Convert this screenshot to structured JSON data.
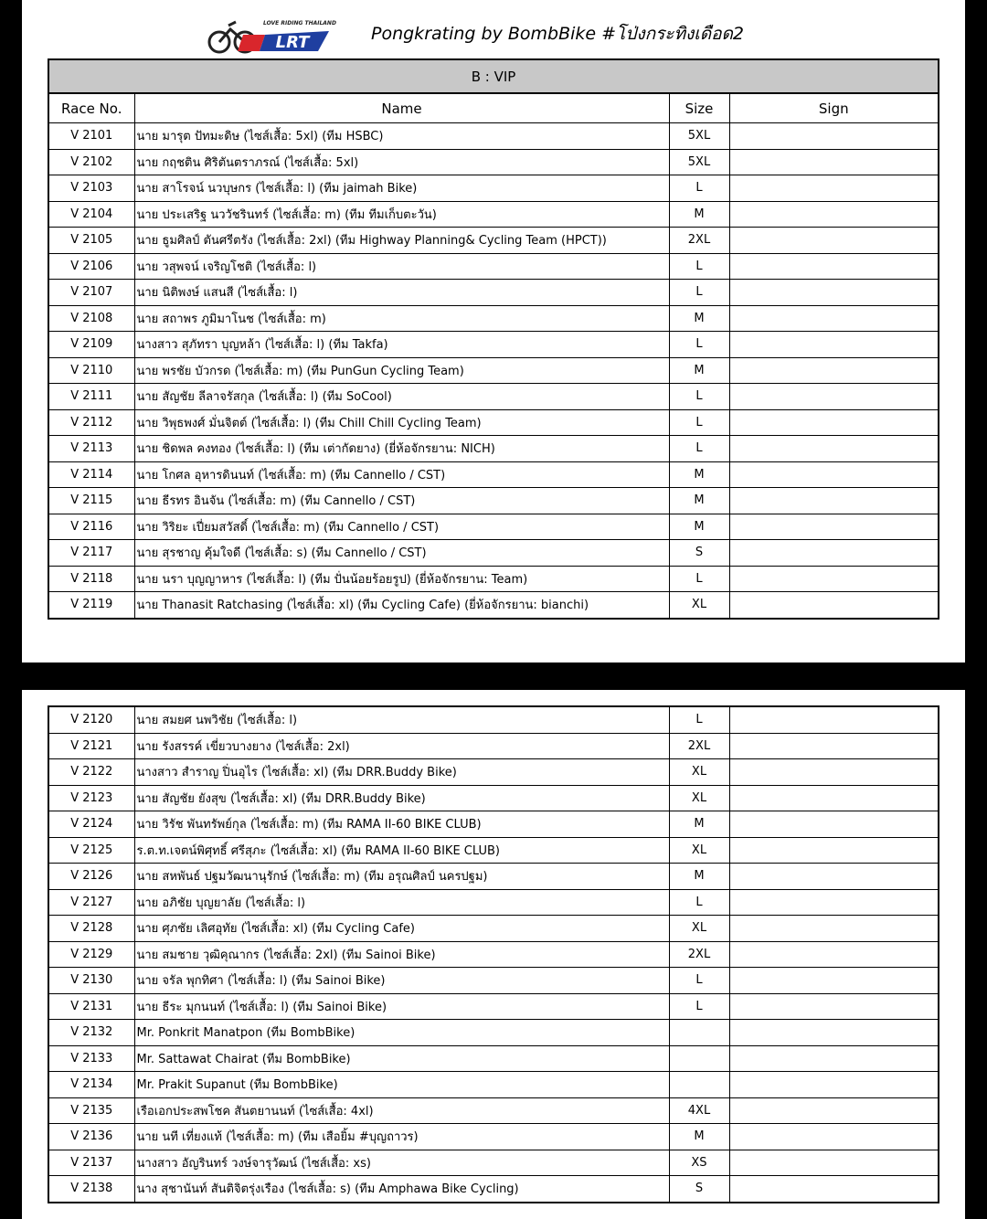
{
  "header": {
    "logo": {
      "tagline": "LOVE RIDING THAILAND",
      "mark": "LRT"
    },
    "title": "Pongkrating by BombBike #โป่งกระทิงเดือด2"
  },
  "table": {
    "section": "B : VIP",
    "columns": [
      "Race No.",
      "Name",
      "Size",
      "Sign"
    ]
  },
  "pages": [
    {
      "rows": [
        {
          "race": "V 2101",
          "name": "นาย มารุต ปัทมะดิษ (ไซส์เสื้อ: 5xl) (ทีม HSBC)",
          "size": "5XL"
        },
        {
          "race": "V 2102",
          "name": "นาย กฤชติน ศิริตันตราภรณ์ (ไซส์เสื้อ: 5xl)",
          "size": "5XL"
        },
        {
          "race": "V 2103",
          "name": "นาย สาโรจน์ นวบุษกร (ไซส์เสื้อ: l) (ทีม jaimah Bike)",
          "size": "L"
        },
        {
          "race": "V 2104",
          "name": "นาย ประเสริฐ นววัชรินทร์ (ไซส์เสื้อ: m) (ทีม ทีมเก็บตะวัน)",
          "size": "M"
        },
        {
          "race": "V 2105",
          "name": "นาย ธูมศิลป์ ตันศรีตรัง (ไซส์เสื้อ: 2xl) (ทีม Highway Planning& Cycling Team (HPCT))",
          "size": "2XL"
        },
        {
          "race": "V 2106",
          "name": "นาย วสุพจน์ เจริญโชติ (ไซส์เสื้อ: l)",
          "size": "L"
        },
        {
          "race": "V 2107",
          "name": "นาย นิติพงษ์ แสนสี (ไซส์เสื้อ: l)",
          "size": "L"
        },
        {
          "race": "V 2108",
          "name": "นาย สถาพร ภูมิมาโนช (ไซส์เสื้อ: m)",
          "size": "M"
        },
        {
          "race": "V 2109",
          "name": "นางสาว สุภัทรา บุญหล้า (ไซส์เสื้อ: l) (ทีม Takfa)",
          "size": "L"
        },
        {
          "race": "V 2110",
          "name": "นาย พรชัย บัวกรด (ไซส์เสื้อ: m) (ทีม PunGun Cycling Team)",
          "size": "M"
        },
        {
          "race": "V 2111",
          "name": "นาย สัญชัย ลีลาจรัสกุล (ไซส์เสื้อ: l) (ทีม SoCool)",
          "size": "L"
        },
        {
          "race": "V 2112",
          "name": "นาย วิพุธพงศ์ มั่นจิตต์ (ไซส์เสื้อ: l) (ทีม Chill Chill Cycling Team)",
          "size": "L"
        },
        {
          "race": "V 2113",
          "name": "นาย ชิดพล คงทอง (ไซส์เสื้อ: l) (ทีม เต่ากัดยาง) (ยี่ห้อจักรยาน: NICH)",
          "size": "L"
        },
        {
          "race": "V 2114",
          "name": "นาย โกศล อุหารดินนท์ (ไซส์เสื้อ: m) (ทีม Cannello / CST)",
          "size": "M"
        },
        {
          "race": "V 2115",
          "name": "นาย ธีรทร อินจัน (ไซส์เสื้อ: m) (ทีม Cannello / CST)",
          "size": "M"
        },
        {
          "race": "V 2116",
          "name": "นาย วิริยะ เปี่ยมสวัสดิ์ (ไซส์เสื้อ: m) (ทีม Cannello / CST)",
          "size": "M"
        },
        {
          "race": "V 2117",
          "name": "นาย สุรชาญ คุ้มใจดี (ไซส์เสื้อ: s) (ทีม Cannello / CST)",
          "size": "S"
        },
        {
          "race": "V 2118",
          "name": "นาย นรา บุญญาหาร (ไซส์เสื้อ: l) (ทีม ปั่นน้อยร้อยรูป) (ยี่ห้อจักรยาน: Team)",
          "size": "L"
        },
        {
          "race": "V 2119",
          "name": "นาย Thanasit Ratchasing (ไซส์เสื้อ: xl) (ทีม Cycling Cafe) (ยี่ห้อจักรยาน: bianchi)",
          "size": "XL"
        }
      ]
    },
    {
      "rows": [
        {
          "race": "V 2120",
          "name": "นาย สมยศ นพวิชัย (ไซส์เสื้อ: l)",
          "size": "L"
        },
        {
          "race": "V 2121",
          "name": "นาย รังสรรค์ เขี่ยวบางยาง (ไซส์เสื้อ: 2xl)",
          "size": "2XL"
        },
        {
          "race": "V 2122",
          "name": "นางสาว สำราญ ปิ่นอุไร (ไซส์เสื้อ: xl) (ทีม DRR.Buddy Bike)",
          "size": "XL"
        },
        {
          "race": "V 2123",
          "name": "นาย สัญชัย ยังสุข (ไซส์เสื้อ: xl) (ทีม DRR.Buddy Bike)",
          "size": "XL"
        },
        {
          "race": "V 2124",
          "name": "นาย วิรัช พันทรัพย์กุล (ไซส์เสื้อ: m) (ทีม RAMA II-60 BIKE CLUB)",
          "size": "M"
        },
        {
          "race": "V 2125",
          "name": "ร.ต.ท.เจตน์พิศุทธิ์ ศรีสุภะ (ไซส์เสื้อ: xl) (ทีม RAMA II-60 BIKE CLUB)",
          "size": "XL"
        },
        {
          "race": "V 2126",
          "name": "นาย สหพันธ์ ปฐมวัฒนานุรักษ์ (ไซส์เสื้อ: m) (ทีม อรุณศิลป์ นครปฐม)",
          "size": "M"
        },
        {
          "race": "V 2127",
          "name": "นาย อภิชัย บุญยาลัย (ไซส์เสื้อ: l)",
          "size": "L"
        },
        {
          "race": "V 2128",
          "name": "นาย ศุภชัย เลิศอุทัย (ไซส์เสื้อ: xl) (ทีม Cycling Cafe)",
          "size": "XL"
        },
        {
          "race": "V 2129",
          "name": "นาย สมชาย วุฒิคุณากร (ไซส์เสื้อ: 2xl) (ทีม Sainoi Bike)",
          "size": "2XL"
        },
        {
          "race": "V 2130",
          "name": "นาย จรัล พุกทิศา (ไซส์เสื้อ: l) (ทีม Sainoi Bike)",
          "size": "L"
        },
        {
          "race": "V 2131",
          "name": "นาย ธีระ มุกนนท์ (ไซส์เสื้อ: l) (ทีม Sainoi Bike)",
          "size": "L"
        },
        {
          "race": "V 2132",
          "name": "Mr. Ponkrit Manatpon (ทีม BombBike)"
        },
        {
          "race": "V 2133",
          "name": "Mr. Sattawat Chairat (ทีม BombBike)"
        },
        {
          "race": "V 2134",
          "name": "Mr. Prakit Supanut (ทีม BombBike)"
        },
        {
          "race": "V 2135",
          "name": "เรือเอกประสพโชค สันตยานนท์ (ไซส์เสื้อ: 4xl)",
          "size": "4XL"
        },
        {
          "race": "V 2136",
          "name": "นาย นที เที่ยงแท้ (ไซส์เสื้อ: m) (ทีม เสือยิ้ม #บุญถาวร)",
          "size": "M"
        },
        {
          "race": "V 2137",
          "name": "นางสาว อัญรินทร์ วงษ์จารุวัฒน์ (ไซส์เสื้อ: xs)",
          "size": "XS"
        },
        {
          "race": "V 2138",
          "name": "นาง สุชานันท์ สันติจิตรุ่งเรือง (ไซส์เสื้อ: s) (ทีม Amphawa Bike Cycling)",
          "size": "S"
        }
      ]
    }
  ]
}
